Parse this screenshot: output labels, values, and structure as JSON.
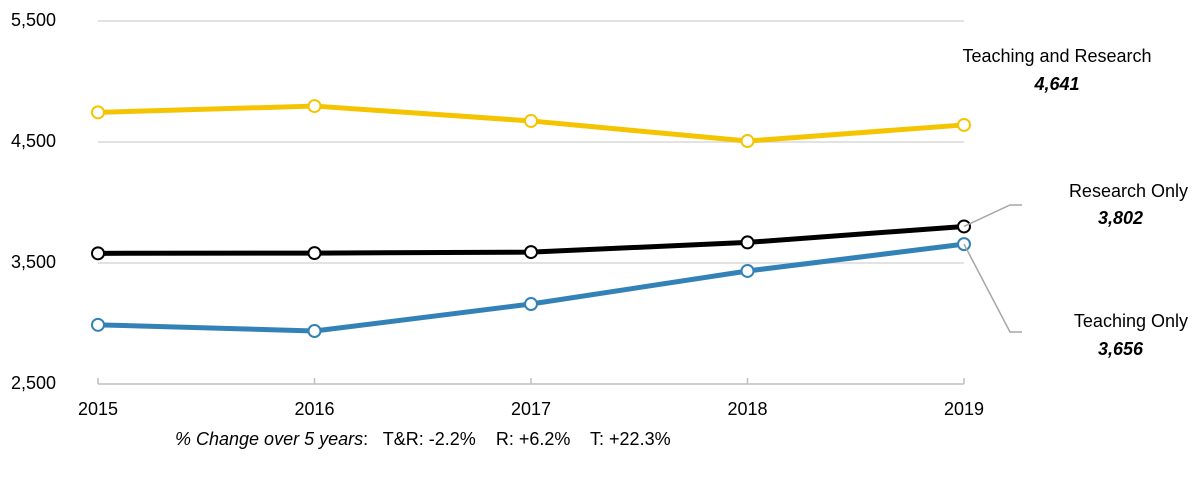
{
  "chart_data": {
    "type": "line",
    "categories": [
      "2015",
      "2016",
      "2017",
      "2018",
      "2019"
    ],
    "series": [
      {
        "name": "Teaching and Research",
        "color": "#f5c400",
        "values": [
          4745,
          4797,
          4674,
          4508,
          4641
        ],
        "value_labels": [
          null,
          null,
          null,
          null,
          "4,641"
        ]
      },
      {
        "name": "Research Only",
        "color": "#000000",
        "values": [
          3580,
          3582,
          3590,
          3670,
          3802
        ],
        "value_labels": [
          null,
          null,
          null,
          null,
          "3,802"
        ]
      },
      {
        "name": "Teaching Only",
        "color": "#3282b8",
        "values": [
          2989,
          2938,
          3161,
          3434,
          3656
        ],
        "value_labels": [
          null,
          null,
          null,
          null,
          "3,656"
        ]
      }
    ],
    "ylim": [
      2500,
      5500
    ],
    "yticks": [
      {
        "value": 2500,
        "label": "2,500"
      },
      {
        "value": 3500,
        "label": "3,500"
      },
      {
        "value": 4500,
        "label": "4,500"
      },
      {
        "value": 5500,
        "label": "5,500"
      }
    ],
    "grid": true,
    "annotation": {
      "label": "% Change over 5 years",
      "text": ":   T&R: -2.2%    R: +6.2%    T: +22.3%"
    }
  }
}
